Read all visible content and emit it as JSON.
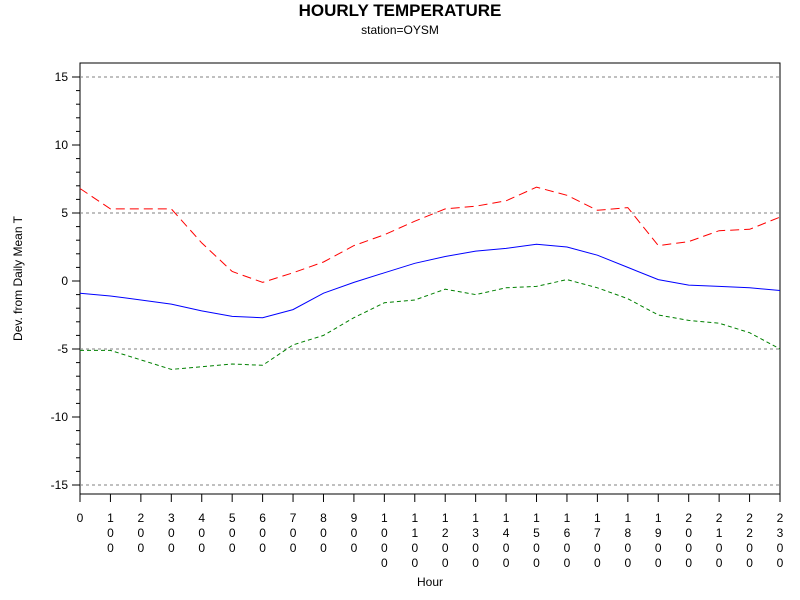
{
  "chart_data": {
    "type": "line",
    "title": "HOURLY TEMPERATURE",
    "subtitle": "station=OYSM",
    "xlabel": "Hour",
    "ylabel": "Dev. from Daily Mean T",
    "xlim": [
      0,
      2300
    ],
    "ylim": [
      -15,
      15
    ],
    "yticks": [
      -15,
      -10,
      -5,
      0,
      5,
      10,
      15
    ],
    "xticks": [
      "0",
      "100",
      "200",
      "300",
      "400",
      "500",
      "600",
      "700",
      "800",
      "900",
      "1000",
      "1100",
      "1200",
      "1300",
      "1400",
      "1500",
      "1600",
      "1700",
      "1800",
      "1900",
      "2000",
      "2100",
      "2200",
      "2300"
    ],
    "reference_lines": [
      -15,
      -5,
      5,
      15
    ],
    "x": [
      0,
      100,
      200,
      300,
      400,
      500,
      600,
      700,
      800,
      900,
      1000,
      1100,
      1200,
      1300,
      1400,
      1500,
      1600,
      1700,
      1800,
      1900,
      2000,
      2100,
      2200,
      2300
    ],
    "series": [
      {
        "color": "#ff0000",
        "style": "long-dash",
        "values": [
          6.8,
          5.3,
          5.3,
          5.3,
          2.8,
          0.7,
          -0.1,
          0.6,
          1.4,
          2.6,
          3.4,
          4.4,
          5.3,
          5.5,
          5.9,
          6.9,
          6.3,
          5.2,
          5.4,
          2.6,
          2.9,
          3.7,
          3.8,
          4.7
        ]
      },
      {
        "color": "#0000ff",
        "style": "solid",
        "values": [
          -0.9,
          -1.1,
          -1.4,
          -1.7,
          -2.2,
          -2.6,
          -2.7,
          -2.1,
          -0.9,
          -0.1,
          0.6,
          1.3,
          1.8,
          2.2,
          2.4,
          2.7,
          2.5,
          1.9,
          1.0,
          0.1,
          -0.3,
          -0.4,
          -0.5,
          -0.7
        ]
      },
      {
        "color": "#008000",
        "style": "short-dash",
        "values": [
          -5.1,
          -5.1,
          -5.8,
          -6.5,
          -6.3,
          -6.1,
          -6.2,
          -4.7,
          -4.0,
          -2.7,
          -1.6,
          -1.4,
          -0.6,
          -1.0,
          -0.5,
          -0.4,
          0.1,
          -0.5,
          -1.3,
          -2.5,
          -2.9,
          -3.1,
          -3.8,
          -5.0
        ]
      }
    ]
  }
}
